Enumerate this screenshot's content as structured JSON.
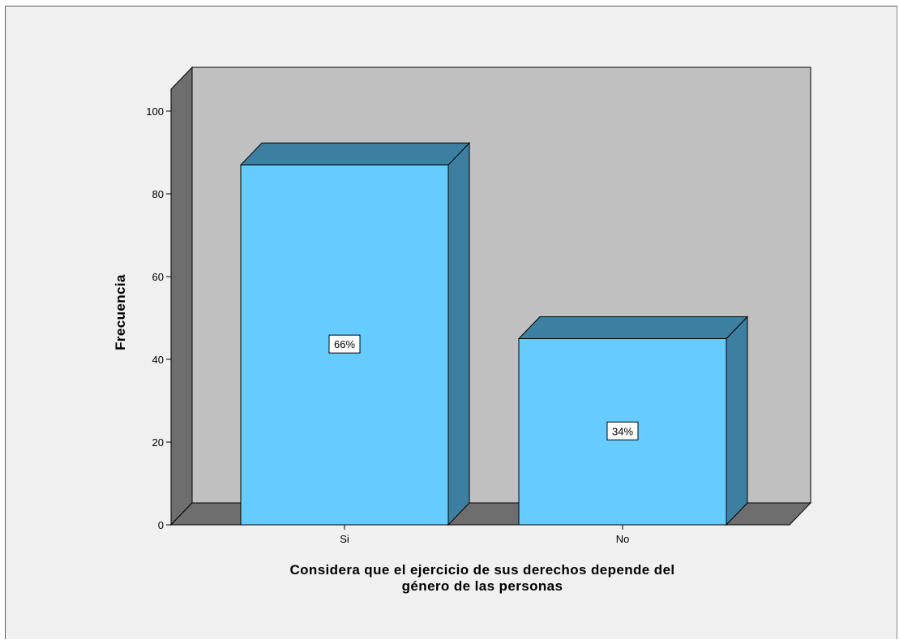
{
  "chart_data": {
    "type": "bar",
    "categories": [
      "Si",
      "No"
    ],
    "values": [
      87,
      45
    ],
    "data_labels": [
      "66%",
      "34%"
    ],
    "xlabel_lines": [
      "Considera que el ejercicio de sus derechos depende del",
      "género de las personas"
    ],
    "ylabel": "Frecuencia",
    "ylim": [
      0,
      100
    ],
    "yticks": [
      "0",
      "20",
      "40",
      "60",
      "80",
      "100"
    ],
    "style": "3d",
    "colors": {
      "bar_front": "#66ccff",
      "bar_top": "#3d7fa1",
      "bar_side": "#3d7fa1",
      "back_wall": "#c0c0c0",
      "left_wall": "#6e6e6e",
      "floor": "#6e6e6e",
      "background": "#f0f0f0"
    }
  }
}
